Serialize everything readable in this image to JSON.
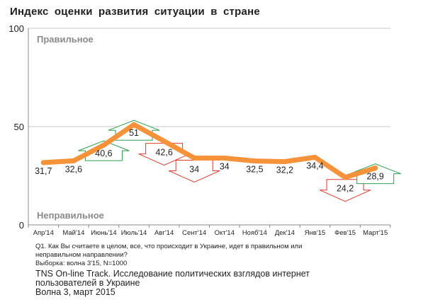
{
  "chart_data": {
    "type": "line",
    "title": "Индекс  оценки  развития  ситуации  в  стране",
    "categories": [
      "Апр'14",
      "Май'14",
      "Июнь'14",
      "Июль'14",
      "Авг'14",
      "Сент'14",
      "Окт'14",
      "Нояб'14",
      "Дек'14",
      "Янв'15",
      "Фев'15",
      "Март'15"
    ],
    "values": [
      31.7,
      32.6,
      40.6,
      51,
      42.6,
      34,
      34,
      32.5,
      32.2,
      34.4,
      24.2,
      28.9
    ],
    "data_labels": [
      "31,7",
      "32,6",
      "40,6",
      "51",
      "42,6",
      "34",
      "34",
      "32,5",
      "32,2",
      "34,4",
      "24,2",
      "28,9"
    ],
    "ylim": [
      0,
      100
    ],
    "yticks": [
      "0",
      "50",
      "100"
    ],
    "top_label": "Правильное",
    "bottom_label": "Неправильное",
    "series_color": "#f6923a",
    "up_color": "#2e9e4f",
    "down_color": "#d93b30",
    "change_arrows": [
      {
        "index": 2,
        "direction": "up"
      },
      {
        "index": 3,
        "direction": "up"
      },
      {
        "index": 4,
        "direction": "down"
      },
      {
        "index": 5,
        "direction": "down"
      },
      {
        "index": 10,
        "direction": "down"
      },
      {
        "index": 11,
        "direction": "up"
      }
    ]
  },
  "notes": {
    "question_line1": "Q1. Как Вы считаете в целом, все, что происходит в Украине, идет в правильном или",
    "question_line2": "неправильном направлении?",
    "sample": "Выборка: волна 3'15, N=1000"
  },
  "source": {
    "line1": "TNS On-line Track. Исследование политических взглядов интернет",
    "line2": "пользователей в Украине",
    "line3": "Волна 3, март 2015"
  }
}
